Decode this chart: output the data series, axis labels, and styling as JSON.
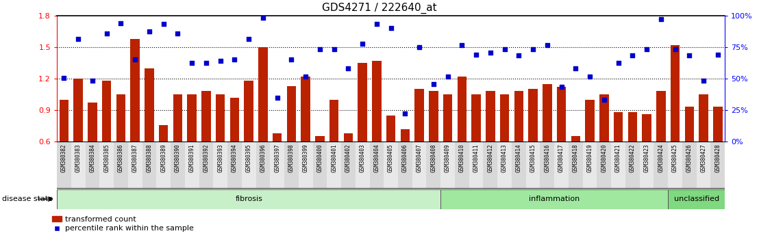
{
  "title": "GDS4271 / 222640_at",
  "samples": [
    "GSM380382",
    "GSM380383",
    "GSM380384",
    "GSM380385",
    "GSM380386",
    "GSM380387",
    "GSM380388",
    "GSM380389",
    "GSM380390",
    "GSM380391",
    "GSM380392",
    "GSM380393",
    "GSM380394",
    "GSM380395",
    "GSM380396",
    "GSM380397",
    "GSM380398",
    "GSM380399",
    "GSM380400",
    "GSM380401",
    "GSM380402",
    "GSM380403",
    "GSM380404",
    "GSM380405",
    "GSM380406",
    "GSM380407",
    "GSM380408",
    "GSM380409",
    "GSM380410",
    "GSM380411",
    "GSM380412",
    "GSM380413",
    "GSM380414",
    "GSM380415",
    "GSM380416",
    "GSM380417",
    "GSM380418",
    "GSM380419",
    "GSM380420",
    "GSM380421",
    "GSM380422",
    "GSM380423",
    "GSM380424",
    "GSM380425",
    "GSM380426",
    "GSM380427",
    "GSM380428"
  ],
  "bar_values": [
    1.0,
    1.2,
    0.97,
    1.18,
    1.05,
    1.58,
    1.3,
    0.76,
    1.05,
    1.05,
    1.08,
    1.05,
    1.02,
    1.18,
    1.5,
    0.68,
    1.13,
    1.22,
    0.65,
    1.0,
    0.68,
    1.35,
    1.37,
    0.85,
    0.72,
    1.1,
    1.08,
    1.05,
    1.22,
    1.05,
    1.08,
    1.05,
    1.08,
    1.1,
    1.15,
    1.12,
    0.65,
    1.0,
    1.05,
    0.88,
    0.88,
    0.86,
    1.08,
    1.52,
    0.93,
    1.05,
    0.93
  ],
  "dot_values": [
    1.21,
    1.58,
    1.18,
    1.63,
    1.73,
    1.38,
    1.65,
    1.72,
    1.63,
    1.35,
    1.35,
    1.37,
    1.38,
    1.58,
    1.78,
    1.02,
    1.38,
    1.22,
    1.48,
    1.48,
    1.3,
    1.53,
    1.72,
    1.68,
    0.87,
    1.5,
    1.15,
    1.22,
    1.52,
    1.43,
    1.45,
    1.48,
    1.42,
    1.48,
    1.52,
    1.12,
    1.3,
    1.22,
    1.0,
    1.35,
    1.42,
    1.48,
    1.77,
    1.48,
    1.42,
    1.18,
    1.43
  ],
  "groups": [
    {
      "label": "fibrosis",
      "start": 0,
      "end": 27,
      "color": "#c8f0c8"
    },
    {
      "label": "inflammation",
      "start": 27,
      "end": 43,
      "color": "#a0e8a0"
    },
    {
      "label": "unclassified",
      "start": 43,
      "end": 47,
      "color": "#80d880"
    }
  ],
  "ylim": [
    0.6,
    1.8
  ],
  "yticks": [
    0.6,
    0.9,
    1.2,
    1.5,
    1.8
  ],
  "y2ticks": [
    0,
    25,
    50,
    75,
    100
  ],
  "bar_color": "#bb2200",
  "dot_color": "#0000cc",
  "hlines": [
    0.9,
    1.2,
    1.5
  ],
  "title_fontsize": 11,
  "cell_colors": [
    "#d8d8d8",
    "#e8e8e8"
  ]
}
